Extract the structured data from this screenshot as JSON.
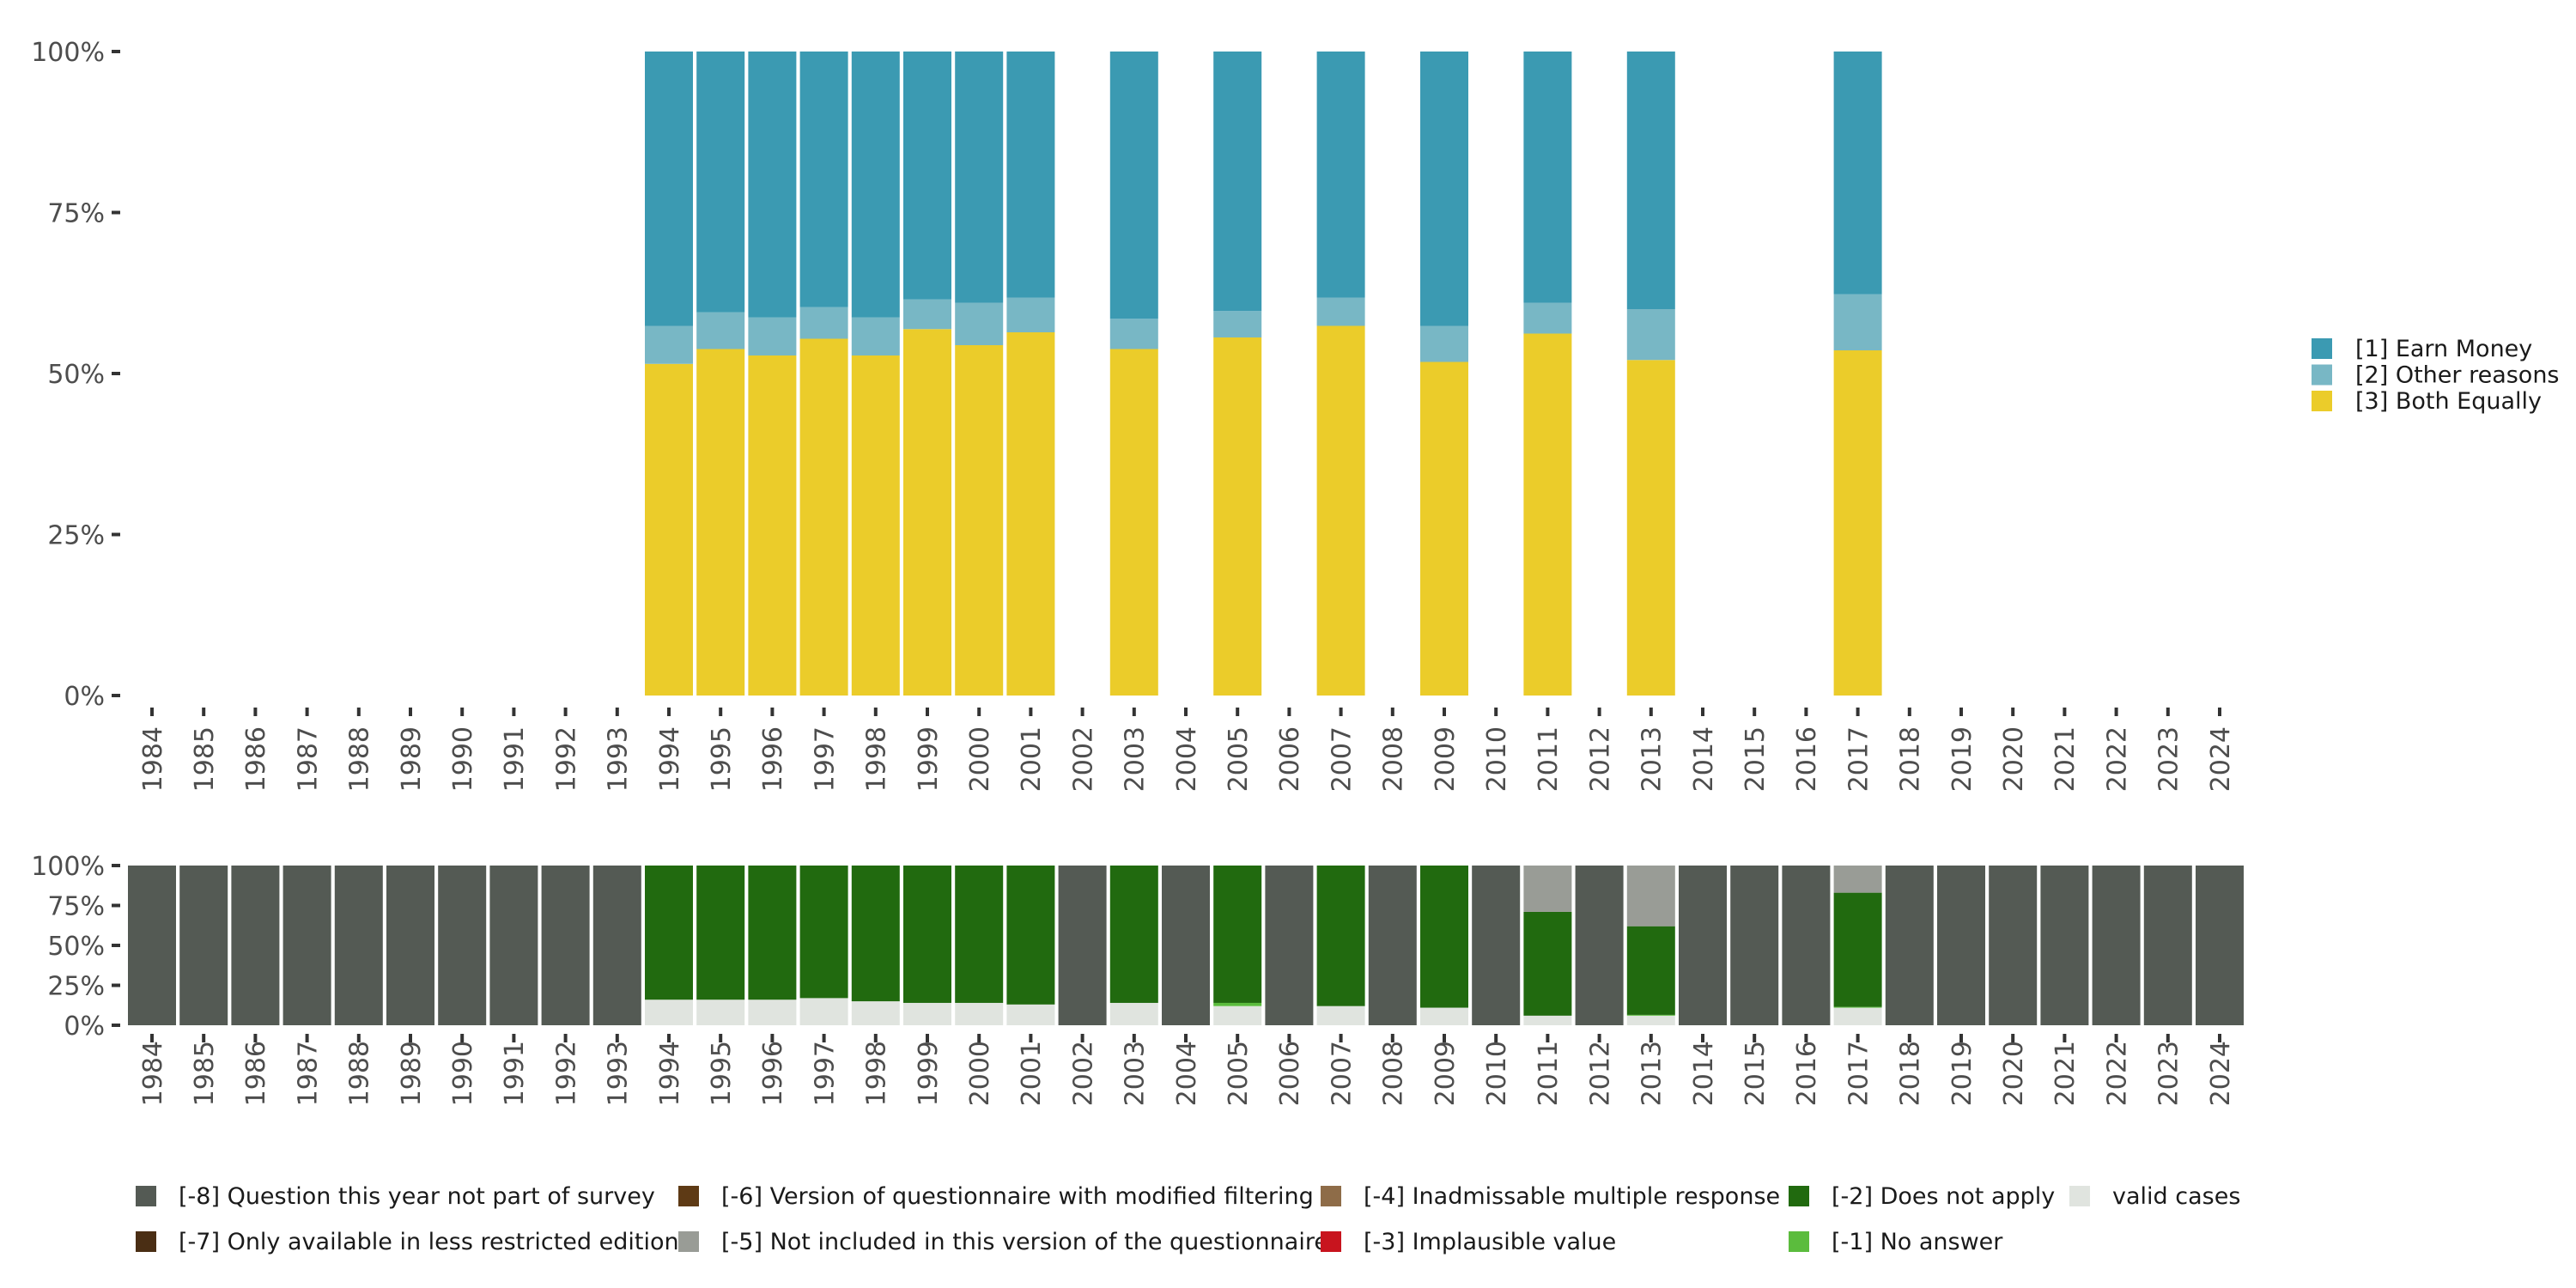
{
  "chart_data": [
    {
      "type": "bar",
      "stacked": true,
      "title": "",
      "xlabel": "",
      "ylabel": "",
      "ylim": [
        0,
        100
      ],
      "y_ticks": [
        "0%",
        "25%",
        "50%",
        "75%",
        "100%"
      ],
      "categories": [
        "1984",
        "1985",
        "1986",
        "1987",
        "1988",
        "1989",
        "1990",
        "1991",
        "1992",
        "1993",
        "1994",
        "1995",
        "1996",
        "1997",
        "1998",
        "1999",
        "2000",
        "2001",
        "2002",
        "2003",
        "2004",
        "2005",
        "2006",
        "2007",
        "2008",
        "2009",
        "2010",
        "2011",
        "2012",
        "2013",
        "2014",
        "2015",
        "2016",
        "2017",
        "2018",
        "2019",
        "2020",
        "2021",
        "2022",
        "2023",
        "2024"
      ],
      "legend_position": "right",
      "series": [
        {
          "name": "[3] Both Equally",
          "color": "#ebcc2a",
          "values": {
            "1994": 51.5,
            "1995": 53.8,
            "1996": 52.8,
            "1997": 55.4,
            "1998": 52.8,
            "1999": 56.9,
            "2000": 54.4,
            "2001": 56.4,
            "2003": 53.8,
            "2005": 55.6,
            "2007": 57.4,
            "2009": 51.8,
            "2011": 56.2,
            "2013": 52.1,
            "2017": 53.6
          }
        },
        {
          "name": "[2] Other reasons",
          "color": "#78b7c5",
          "values": {
            "1994": 5.9,
            "1995": 5.7,
            "1996": 5.9,
            "1997": 4.9,
            "1998": 5.9,
            "1999": 4.6,
            "2000": 6.6,
            "2001": 5.4,
            "2003": 4.7,
            "2005": 4.1,
            "2007": 4.4,
            "2009": 5.6,
            "2011": 4.8,
            "2013": 7.9,
            "2017": 8.7
          }
        },
        {
          "name": "[1] Earn Money",
          "color": "#3b9ab2",
          "values": {
            "1994": 42.6,
            "1995": 40.5,
            "1996": 41.3,
            "1997": 39.7,
            "1998": 41.3,
            "1999": 38.5,
            "2000": 39.0,
            "2001": 38.2,
            "2003": 41.5,
            "2005": 40.3,
            "2007": 38.2,
            "2009": 42.6,
            "2011": 39.0,
            "2013": 40.0,
            "2017": 37.7
          }
        }
      ]
    },
    {
      "type": "bar",
      "stacked": true,
      "title": "",
      "ylim": [
        0,
        100
      ],
      "y_ticks": [
        "0%",
        "25%",
        "50%",
        "75%",
        "100%"
      ],
      "categories": [
        "1984",
        "1985",
        "1986",
        "1987",
        "1988",
        "1989",
        "1990",
        "1991",
        "1992",
        "1993",
        "1994",
        "1995",
        "1996",
        "1997",
        "1998",
        "1999",
        "2000",
        "2001",
        "2002",
        "2003",
        "2004",
        "2005",
        "2006",
        "2007",
        "2008",
        "2009",
        "2010",
        "2011",
        "2012",
        "2013",
        "2014",
        "2015",
        "2016",
        "2017",
        "2018",
        "2019",
        "2020",
        "2021",
        "2022",
        "2023",
        "2024"
      ],
      "legend_position": "bottom",
      "series": [
        {
          "name": "valid cases",
          "color": "#e0e4df",
          "values": {
            "1994": 16,
            "1995": 16,
            "1996": 16,
            "1997": 17,
            "1998": 15,
            "1999": 14,
            "2000": 14,
            "2001": 13,
            "2003": 14,
            "2005": 12,
            "2007": 12,
            "2009": 11,
            "2011": 6,
            "2013": 6,
            "2017": 11
          }
        },
        {
          "name": "[-1] No answer",
          "color": "#5bbc3d",
          "values": {
            "2005": 2,
            "2013": 0.5,
            "2017": 0.5
          }
        },
        {
          "name": "[-2] Does not apply",
          "color": "#216a0f",
          "values": {
            "1994": 84,
            "1995": 84,
            "1996": 84,
            "1997": 83,
            "1998": 85,
            "1999": 86,
            "2000": 86,
            "2001": 87,
            "2003": 86,
            "2005": 86,
            "2007": 88,
            "2009": 89,
            "2011": 65,
            "2013": 55.5,
            "2017": 71.5
          }
        },
        {
          "name": "[-3] Implausible value",
          "color": "#c8141e",
          "values": {}
        },
        {
          "name": "[-4] Inadmissable multiple response",
          "color": "#8e6c48",
          "values": {}
        },
        {
          "name": "[-5] Not included in this version of the questionnaire",
          "color": "#999c96",
          "values": {
            "2011": 29,
            "2013": 38,
            "2017": 17
          }
        },
        {
          "name": "[-6] Version of questionnaire with modified filtering",
          "color": "#5e3a15",
          "values": {}
        },
        {
          "name": "[-7] Only available in less restricted edition",
          "color": "#4a2e14",
          "values": {}
        },
        {
          "name": "[-8] Question this year not part of survey",
          "color": "#545a54",
          "values": {
            "1984": 100,
            "1985": 100,
            "1986": 100,
            "1987": 100,
            "1988": 100,
            "1989": 100,
            "1990": 100,
            "1991": 100,
            "1992": 100,
            "1993": 100,
            "2002": 100,
            "2004": 100,
            "2006": 100,
            "2008": 100,
            "2010": 100,
            "2012": 100,
            "2014": 100,
            "2015": 100,
            "2016": 100,
            "2018": 100,
            "2019": 100,
            "2020": 100,
            "2021": 100,
            "2022": 100,
            "2023": 100,
            "2024": 100
          }
        }
      ],
      "legend_order": [
        "[-8] Question this year not part of survey",
        "[-6] Version of questionnaire with modified filtering",
        "[-4] Inadmissable multiple response",
        "[-2] Does not apply",
        "valid cases",
        "[-7] Only available in less restricted edition",
        "[-5] Not included in this version of the questionnaire",
        "[-3] Implausible value",
        "[-1] No answer"
      ]
    }
  ]
}
